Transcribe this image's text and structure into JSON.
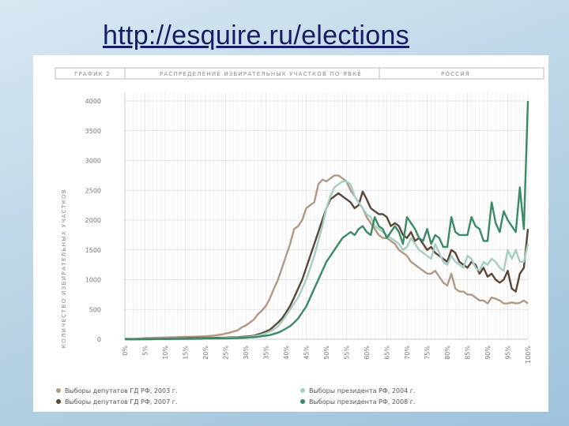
{
  "slide": {
    "url": "http://esquire.ru/elections"
  },
  "colors": {
    "background": "#bcd6e6",
    "url_text": "#1a1a66",
    "grid": "#e3e3e3",
    "axis": "#c8c8c8"
  },
  "chart_data": {
    "type": "line",
    "header": {
      "left": "ГРАФИК 2",
      "center": "РАСПРЕДЕЛЕНИЕ ИЗБИРАТЕЛЬНЫХ УЧАСТКОВ ПО ЯВКЕ",
      "right": "РОССИЯ"
    },
    "ylabel": "КОЛИЧЕСТВО ИЗБИРАТЕЛЬНЫХ УЧАСТКОВ",
    "xlabel": "",
    "ylim": [
      0,
      4000
    ],
    "yticks": [
      0,
      500,
      1000,
      1500,
      2000,
      2500,
      3000,
      3500,
      4000
    ],
    "xlim": [
      0,
      100
    ],
    "xticks": [
      "0%",
      "5%",
      "10%",
      "15%",
      "20%",
      "25%",
      "30%",
      "35%",
      "40%",
      "45%",
      "50%",
      "55%",
      "60%",
      "65%",
      "70%",
      "75%",
      "80%",
      "85%",
      "90%",
      "95%",
      "100%"
    ],
    "grid": true,
    "legend_position": "bottom",
    "x": [
      0,
      1,
      2,
      3,
      4,
      5,
      6,
      7,
      8,
      9,
      10,
      11,
      12,
      13,
      14,
      15,
      16,
      17,
      18,
      19,
      20,
      21,
      22,
      23,
      24,
      25,
      26,
      27,
      28,
      29,
      30,
      31,
      32,
      33,
      34,
      35,
      36,
      37,
      38,
      39,
      40,
      41,
      42,
      43,
      44,
      45,
      46,
      47,
      48,
      49,
      50,
      51,
      52,
      53,
      54,
      55,
      56,
      57,
      58,
      59,
      60,
      61,
      62,
      63,
      64,
      65,
      66,
      67,
      68,
      69,
      70,
      71,
      72,
      73,
      74,
      75,
      76,
      77,
      78,
      79,
      80,
      81,
      82,
      83,
      84,
      85,
      86,
      87,
      88,
      89,
      90,
      91,
      92,
      93,
      94,
      95,
      96,
      97,
      98,
      99,
      100
    ],
    "series": [
      {
        "name": "Выборы депутатов ГД РФ, 2003 г.",
        "color": "#b09a86",
        "values": [
          10,
          8,
          5,
          10,
          15,
          20,
          20,
          22,
          25,
          28,
          30,
          32,
          34,
          36,
          38,
          40,
          40,
          42,
          45,
          48,
          50,
          55,
          60,
          70,
          80,
          95,
          110,
          130,
          150,
          200,
          230,
          280,
          330,
          420,
          480,
          560,
          690,
          850,
          1000,
          1200,
          1400,
          1600,
          1850,
          1900,
          2000,
          2200,
          2250,
          2300,
          2600,
          2680,
          2650,
          2700,
          2750,
          2750,
          2700,
          2650,
          2500,
          2400,
          2300,
          2200,
          2050,
          1950,
          1850,
          1750,
          1700,
          1700,
          1650,
          1600,
          1500,
          1450,
          1400,
          1300,
          1250,
          1200,
          1150,
          1100,
          1100,
          1150,
          1050,
          950,
          900,
          1100,
          850,
          800,
          800,
          750,
          750,
          700,
          650,
          650,
          600,
          700,
          680,
          650,
          600,
          600,
          620,
          600,
          610,
          650,
          600
        ]
      },
      {
        "name": "Выборы депутатов ГД РФ, 2007 г.",
        "color": "#5a4636",
        "values": [
          0,
          0,
          0,
          0,
          0,
          5,
          5,
          5,
          5,
          8,
          10,
          10,
          12,
          12,
          15,
          15,
          18,
          18,
          20,
          20,
          20,
          22,
          22,
          25,
          25,
          28,
          30,
          32,
          35,
          40,
          45,
          50,
          60,
          80,
          100,
          130,
          160,
          220,
          280,
          350,
          450,
          560,
          700,
          850,
          1000,
          1200,
          1400,
          1600,
          1800,
          2000,
          2200,
          2350,
          2400,
          2450,
          2400,
          2350,
          2300,
          2200,
          2250,
          2480,
          2350,
          2200,
          2150,
          2100,
          2100,
          2050,
          1900,
          1950,
          1900,
          1750,
          1700,
          1800,
          1650,
          1700,
          1600,
          1500,
          1550,
          1450,
          1400,
          1350,
          1300,
          1500,
          1450,
          1300,
          1250,
          1200,
          1300,
          1250,
          1100,
          1200,
          1050,
          1100,
          1000,
          950,
          1000,
          1150,
          850,
          800,
          1100,
          1200,
          1850
        ]
      },
      {
        "name": "Выборы президента РФ, 2004 г.",
        "color": "#a6cec0",
        "values": [
          0,
          0,
          0,
          0,
          0,
          0,
          0,
          2,
          3,
          4,
          5,
          5,
          6,
          6,
          8,
          8,
          8,
          10,
          10,
          12,
          12,
          15,
          15,
          15,
          18,
          20,
          22,
          25,
          28,
          30,
          35,
          40,
          50,
          60,
          80,
          100,
          130,
          170,
          220,
          300,
          400,
          500,
          600,
          700,
          850,
          1000,
          1200,
          1400,
          1650,
          1900,
          2200,
          2400,
          2550,
          2600,
          2650,
          2650,
          2600,
          2400,
          2300,
          2200,
          2100,
          2050,
          1900,
          1850,
          1800,
          1750,
          1700,
          1650,
          1600,
          1500,
          1550,
          1700,
          1600,
          1500,
          1450,
          1400,
          1350,
          1600,
          1450,
          1300,
          1250,
          1400,
          1300,
          1250,
          1200,
          1400,
          1350,
          1200,
          1150,
          1300,
          1250,
          1350,
          1300,
          1200,
          1150,
          1500,
          1350,
          1500,
          1300,
          1300,
          1600
        ]
      },
      {
        "name": "Выборы президента РФ, 2008 г.",
        "color": "#3a8a66",
        "values": [
          0,
          0,
          0,
          0,
          0,
          0,
          0,
          0,
          2,
          2,
          3,
          3,
          4,
          4,
          5,
          5,
          6,
          6,
          8,
          8,
          10,
          10,
          10,
          12,
          12,
          15,
          15,
          18,
          20,
          22,
          25,
          30,
          35,
          40,
          50,
          60,
          70,
          90,
          110,
          140,
          180,
          220,
          280,
          350,
          450,
          550,
          700,
          850,
          1000,
          1150,
          1300,
          1400,
          1500,
          1600,
          1700,
          1750,
          1800,
          1750,
          1850,
          1900,
          1800,
          1750,
          2050,
          1900,
          1850,
          1700,
          1800,
          1900,
          1800,
          1600,
          2050,
          1950,
          1850,
          1700,
          1650,
          1850,
          1600,
          1750,
          1700,
          1550,
          1550,
          2050,
          1800,
          1750,
          1750,
          1750,
          2050,
          1900,
          1850,
          1650,
          1650,
          2300,
          1950,
          1800,
          2150,
          2000,
          1900,
          1800,
          2550,
          1850,
          4000
        ]
      }
    ]
  }
}
